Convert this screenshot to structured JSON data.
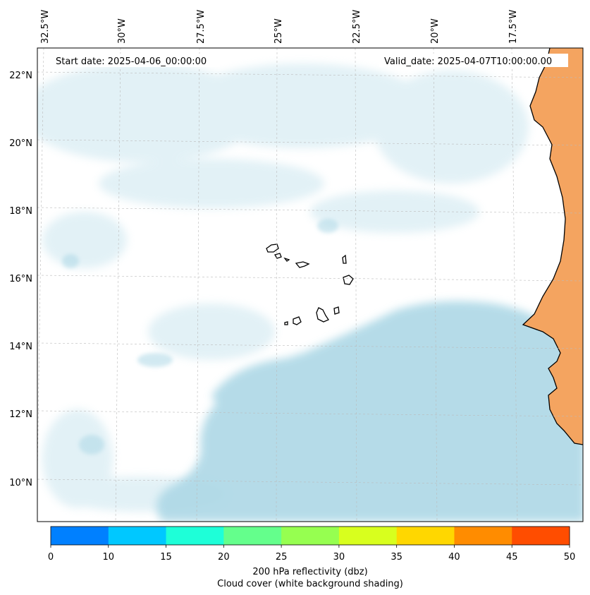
{
  "header": {
    "start_label": "Start date: 2025-04-06_00:00:00",
    "valid_label": "Valid_date: 2025-04-07T10:00:00.00"
  },
  "axes": {
    "lon_labels": [
      "32.5°W",
      "30°W",
      "27.5°W",
      "25°W",
      "22.5°W",
      "20°W",
      "17.5°W"
    ],
    "lat_labels": [
      "22°N",
      "20°N",
      "18°N",
      "16°N",
      "14°N",
      "12°N",
      "10°N"
    ]
  },
  "colorbar": {
    "ticks": [
      "0",
      "10",
      "15",
      "20",
      "25",
      "30",
      "35",
      "40",
      "45",
      "50"
    ],
    "colors": [
      "#0080ff",
      "#00c8ff",
      "#1effd8",
      "#64ff8c",
      "#96ff50",
      "#d8ff1e",
      "#ffd700",
      "#ff8c00",
      "#ff4d00"
    ],
    "label_line1": "200 hPa reflectivity (dbz)",
    "label_line2": "Cloud cover (white background shading)"
  },
  "colors": {
    "cloud": "#add8e6",
    "land": "#f4a460",
    "coast": "#000000"
  }
}
